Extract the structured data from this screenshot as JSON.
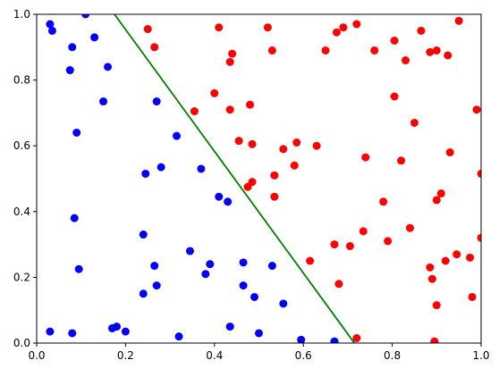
{
  "chart_data": {
    "type": "scatter",
    "xlim": [
      0,
      1
    ],
    "ylim": [
      0,
      1
    ],
    "xticks": [
      {
        "value": 0,
        "label": "0.0"
      },
      0.2,
      0.4,
      0.6,
      0.8,
      {
        "value": 1,
        "label": "1.0"
      }
    ],
    "yticks": [
      {
        "value": 0,
        "label": "0.0"
      },
      0.2,
      0.4,
      0.6,
      0.8,
      {
        "value": 1,
        "label": "1.0"
      }
    ],
    "grid": false,
    "series": [
      {
        "type": "scatter",
        "color": "#0000ff",
        "x": [
          0.03,
          0.035,
          0.11,
          0.13,
          0.08,
          0.075,
          0.16,
          0.15,
          0.09,
          0.27,
          0.315,
          0.28,
          0.245,
          0.37,
          0.41,
          0.43,
          0.085,
          0.24,
          0.095,
          0.265,
          0.345,
          0.39,
          0.38,
          0.465,
          0.53,
          0.27,
          0.24,
          0.465,
          0.49,
          0.555,
          0.435,
          0.5,
          0.32,
          0.17,
          0.18,
          0.2,
          0.03,
          0.08,
          0.595,
          0.67
        ],
        "values": [
          0.97,
          0.95,
          1.0,
          0.93,
          0.9,
          0.83,
          0.84,
          0.735,
          0.64,
          0.735,
          0.63,
          0.535,
          0.515,
          0.53,
          0.445,
          0.43,
          0.38,
          0.33,
          0.225,
          0.235,
          0.28,
          0.24,
          0.21,
          0.245,
          0.235,
          0.175,
          0.15,
          0.175,
          0.14,
          0.12,
          0.05,
          0.03,
          0.02,
          0.045,
          0.05,
          0.035,
          0.035,
          0.03,
          0.01,
          0.005
        ]
      },
      {
        "type": "scatter",
        "color": "#ff0000",
        "x": [
          0.25,
          0.265,
          0.41,
          0.52,
          0.53,
          0.435,
          0.44,
          0.4,
          0.435,
          0.355,
          0.48,
          0.455,
          0.485,
          0.475,
          0.485,
          0.535,
          0.535,
          0.555,
          0.585,
          0.58,
          0.63,
          0.615,
          0.65,
          0.675,
          0.69,
          0.72,
          0.76,
          0.805,
          0.83,
          0.865,
          0.885,
          0.9,
          0.925,
          0.95,
          0.805,
          0.85,
          0.99,
          0.93,
          0.82,
          0.74,
          1.0,
          0.91,
          0.9,
          0.78,
          0.84,
          0.79,
          0.735,
          0.67,
          0.705,
          0.68,
          0.72,
          0.885,
          0.89,
          0.92,
          0.945,
          0.975,
          1.0,
          0.98,
          0.9,
          0.895
        ],
        "values": [
          0.955,
          0.9,
          0.96,
          0.96,
          0.89,
          0.855,
          0.88,
          0.76,
          0.71,
          0.705,
          0.725,
          0.615,
          0.605,
          0.475,
          0.49,
          0.51,
          0.445,
          0.59,
          0.61,
          0.54,
          0.6,
          0.25,
          0.89,
          0.945,
          0.96,
          0.97,
          0.89,
          0.92,
          0.86,
          0.95,
          0.885,
          0.89,
          0.875,
          0.98,
          0.75,
          0.67,
          0.71,
          0.58,
          0.555,
          0.565,
          0.515,
          0.455,
          0.435,
          0.43,
          0.35,
          0.31,
          0.34,
          0.3,
          0.295,
          0.18,
          0.015,
          0.23,
          0.195,
          0.25,
          0.27,
          0.26,
          0.32,
          0.14,
          0.115,
          0.005
        ]
      },
      {
        "type": "line",
        "color": "#008000",
        "x": [
          0.175,
          0.715
        ],
        "values": [
          1,
          0
        ]
      }
    ]
  }
}
